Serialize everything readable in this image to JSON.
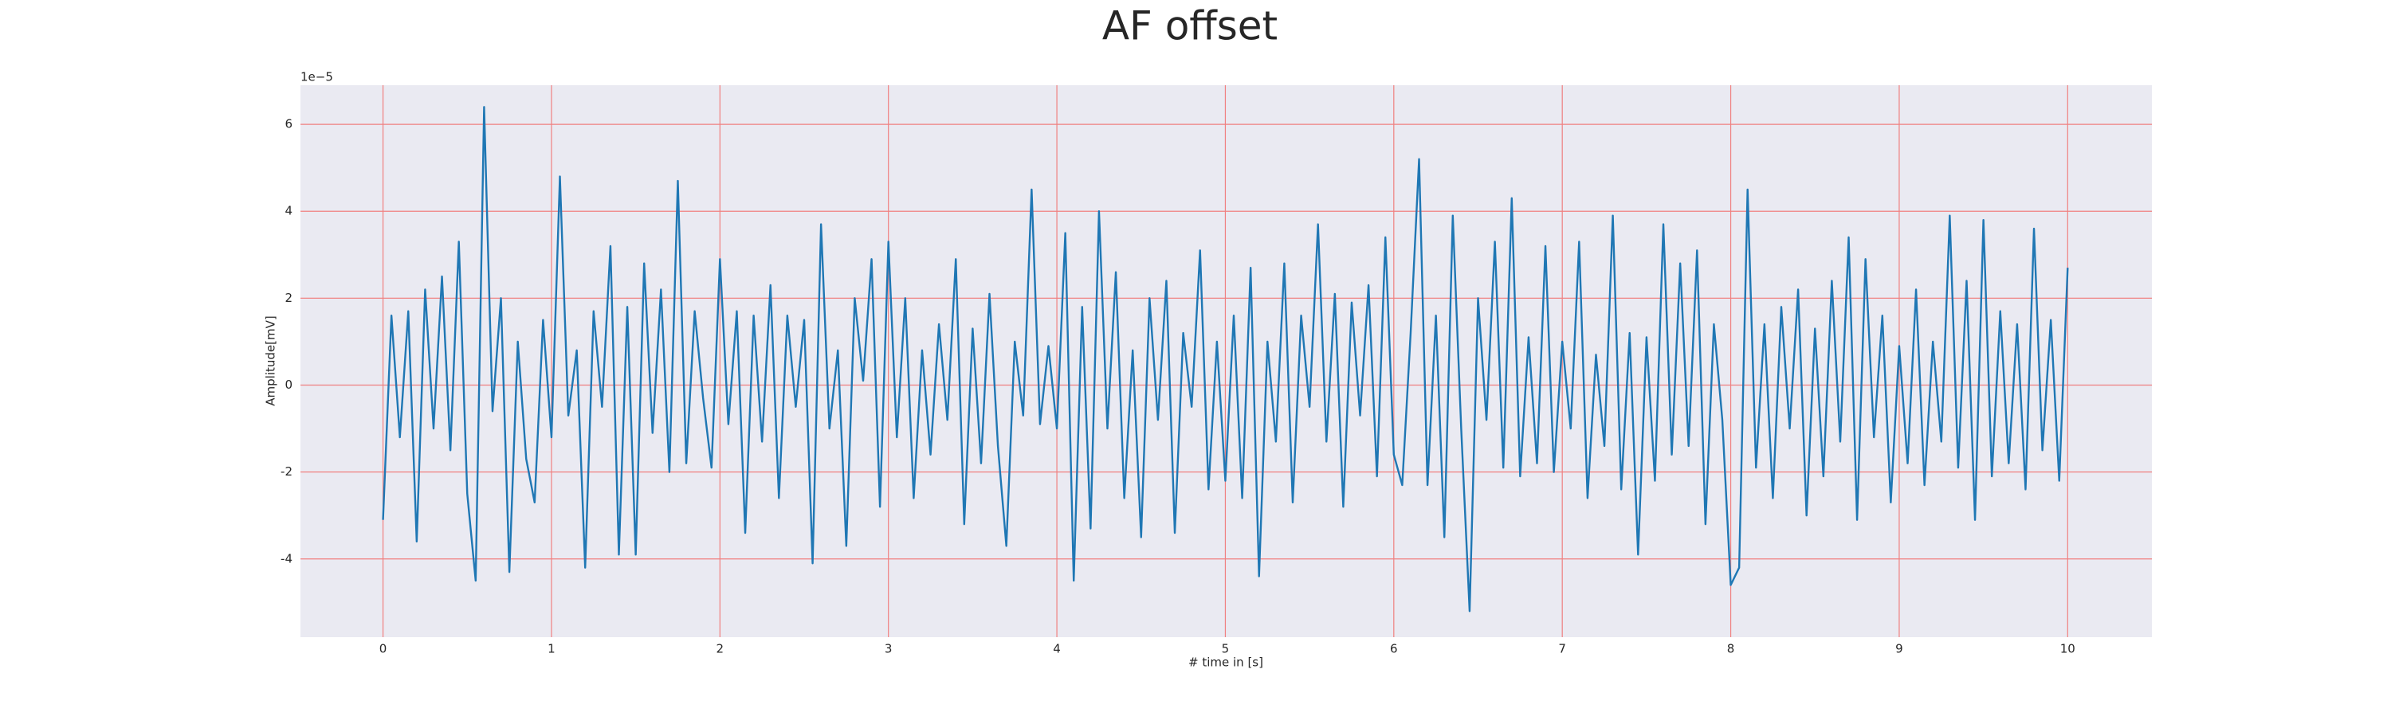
{
  "chart_data": {
    "type": "line",
    "title": "AF offset",
    "xlabel": "# time in [s]",
    "ylabel": "Amplitude[mV]",
    "y_offset_label": "1e−5",
    "color": "#1f77b4",
    "grid": true,
    "grid_color": "#f08080",
    "background": "#eaeaf2",
    "xlim": [
      -0.49,
      10.5
    ],
    "xticks": [
      0,
      1,
      2,
      3,
      4,
      5,
      6,
      7,
      8,
      9,
      10
    ],
    "ylim": [
      -5.8,
      6.9
    ],
    "yticks": [
      -4,
      -2,
      0,
      2,
      4,
      6
    ],
    "x": [
      0,
      0.05,
      0.1,
      0.15,
      0.2,
      0.25,
      0.3,
      0.35,
      0.4,
      0.45,
      0.5,
      0.55,
      0.6,
      0.65,
      0.7,
      0.75,
      0.8,
      0.85,
      0.9,
      0.95,
      1,
      1.05,
      1.1,
      1.15,
      1.2,
      1.25,
      1.3,
      1.35,
      1.4,
      1.45,
      1.5,
      1.55,
      1.6,
      1.65,
      1.7,
      1.75,
      1.8,
      1.85,
      1.9,
      1.95,
      2,
      2.05,
      2.1,
      2.15,
      2.2,
      2.25,
      2.3,
      2.35,
      2.4,
      2.45,
      2.5,
      2.55,
      2.6,
      2.65,
      2.7,
      2.75,
      2.8,
      2.85,
      2.9,
      2.95,
      3,
      3.05,
      3.1,
      3.15,
      3.2,
      3.25,
      3.3,
      3.35,
      3.4,
      3.45,
      3.5,
      3.55,
      3.6,
      3.65,
      3.7,
      3.75,
      3.8,
      3.85,
      3.9,
      3.95,
      4,
      4.05,
      4.1,
      4.15,
      4.2,
      4.25,
      4.3,
      4.35,
      4.4,
      4.45,
      4.5,
      4.55,
      4.6,
      4.65,
      4.7,
      4.75,
      4.8,
      4.85,
      4.9,
      4.95,
      5,
      5.05,
      5.1,
      5.15,
      5.2,
      5.25,
      5.3,
      5.35,
      5.4,
      5.45,
      5.5,
      5.55,
      5.6,
      5.65,
      5.7,
      5.75,
      5.8,
      5.85,
      5.9,
      5.95,
      6,
      6.05,
      6.1,
      6.15,
      6.2,
      6.25,
      6.3,
      6.35,
      6.4,
      6.45,
      6.5,
      6.55,
      6.6,
      6.65,
      6.7,
      6.75,
      6.8,
      6.85,
      6.9,
      6.95,
      7,
      7.05,
      7.1,
      7.15,
      7.2,
      7.25,
      7.3,
      7.35,
      7.4,
      7.45,
      7.5,
      7.55,
      7.6,
      7.65,
      7.7,
      7.75,
      7.8,
      7.85,
      7.9,
      7.95,
      8,
      8.05,
      8.1,
      8.15,
      8.2,
      8.25,
      8.3,
      8.35,
      8.4,
      8.45,
      8.5,
      8.55,
      8.6,
      8.65,
      8.7,
      8.75,
      8.8,
      8.85,
      8.9,
      8.95,
      9,
      9.05,
      9.1,
      9.15,
      9.2,
      9.25,
      9.3,
      9.35,
      9.4,
      9.45,
      9.5,
      9.55,
      9.6,
      9.65,
      9.7,
      9.75,
      9.8,
      9.85,
      9.9,
      9.95,
      10
    ],
    "values": [
      -3.1,
      1.6,
      -1.2,
      1.7,
      -3.6,
      2.2,
      -1.0,
      2.5,
      -1.5,
      3.3,
      -2.5,
      -4.5,
      6.4,
      -0.6,
      2.0,
      -4.3,
      1.0,
      -1.7,
      -2.7,
      1.5,
      -1.2,
      4.8,
      -0.7,
      0.8,
      -4.2,
      1.7,
      -0.5,
      3.2,
      -3.9,
      1.8,
      -3.9,
      2.8,
      -1.1,
      2.2,
      -2.0,
      4.7,
      -1.8,
      1.7,
      -0.3,
      -1.9,
      2.9,
      -0.9,
      1.7,
      -3.4,
      1.6,
      -1.3,
      2.3,
      -2.6,
      1.6,
      -0.5,
      1.5,
      -4.1,
      3.7,
      -1.0,
      0.8,
      -3.7,
      2.0,
      0.1,
      2.9,
      -2.8,
      3.3,
      -1.2,
      2.0,
      -2.6,
      0.8,
      -1.6,
      1.4,
      -0.8,
      2.9,
      -3.2,
      1.3,
      -1.8,
      2.1,
      -1.4,
      -3.7,
      1.0,
      -0.7,
      4.5,
      -0.9,
      0.9,
      -1.0,
      3.5,
      -4.5,
      1.8,
      -3.3,
      4.0,
      -1.0,
      2.6,
      -2.6,
      0.8,
      -3.5,
      2.0,
      -0.8,
      2.4,
      -3.4,
      1.2,
      -0.5,
      3.1,
      -2.4,
      1.0,
      -2.2,
      1.6,
      -2.6,
      2.7,
      -4.4,
      1.0,
      -1.3,
      2.8,
      -2.7,
      1.6,
      -0.5,
      3.7,
      -1.3,
      2.1,
      -2.8,
      1.9,
      -0.7,
      2.3,
      -2.1,
      3.4,
      -1.6,
      -2.3,
      1.2,
      5.2,
      -2.3,
      1.6,
      -3.5,
      3.9,
      -1.0,
      -5.2,
      2.0,
      -0.8,
      3.3,
      -1.9,
      4.3,
      -2.1,
      1.1,
      -1.8,
      3.2,
      -2.0,
      1.0,
      -1.0,
      3.3,
      -2.6,
      0.7,
      -1.4,
      3.9,
      -2.4,
      1.2,
      -3.9,
      1.1,
      -2.2,
      3.7,
      -1.6,
      2.8,
      -1.4,
      3.1,
      -3.2,
      1.4,
      -0.8,
      -4.6,
      -4.2,
      4.5,
      -1.9,
      1.4,
      -2.6,
      1.8,
      -1.0,
      2.2,
      -3.0,
      1.3,
      -2.1,
      2.4,
      -1.3,
      3.4,
      -3.1,
      2.9,
      -1.2,
      1.6,
      -2.7,
      0.9,
      -1.8,
      2.2,
      -2.3,
      1.0,
      -1.3,
      3.9,
      -1.9,
      2.4,
      -3.1,
      3.8,
      -2.1,
      1.7,
      -1.8,
      1.4,
      -2.4,
      3.6,
      -1.5,
      1.5,
      -2.2,
      2.7
    ]
  }
}
